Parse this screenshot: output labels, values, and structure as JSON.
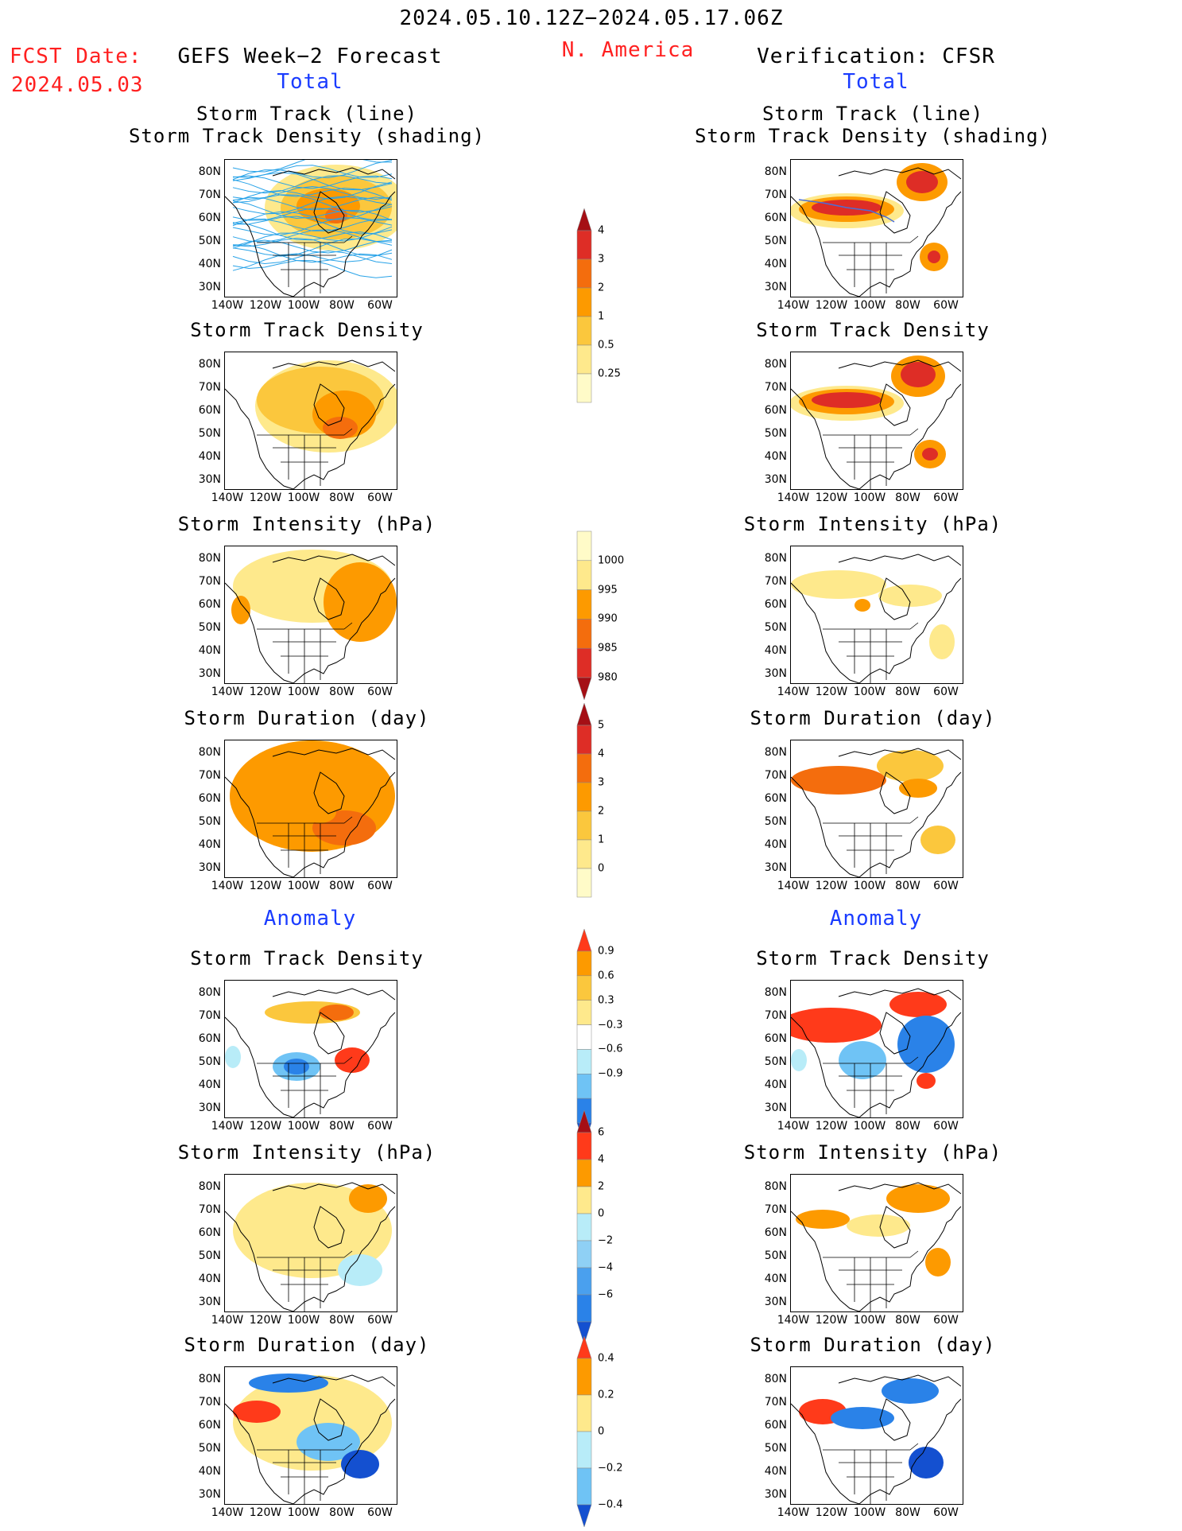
{
  "header": {
    "period": "2024.05.10.12Z−2024.05.17.06Z",
    "region": "N. America",
    "fcst_date_label": "FCST Date:",
    "fcst_date": "2024.05.03",
    "left_title": "GEFS Week−2 Forecast",
    "right_title": "Verification: CFSR",
    "total_label": "Total",
    "anomaly_label": "Anomaly"
  },
  "panel_titles": {
    "track_line": "Storm Track (line)",
    "track_shading": "Storm Track Density (shading)",
    "density": "Storm Track Density",
    "intensity": "Storm Intensity (hPa)",
    "duration": "Storm Duration (day)"
  },
  "axes": {
    "lat_ticks": [
      "80N",
      "70N",
      "60N",
      "50N",
      "40N",
      "30N"
    ],
    "lon_ticks": [
      "140W",
      "120W",
      "100W",
      "80W",
      "60W"
    ]
  },
  "colorbars": {
    "density_total": {
      "labels": [
        "4",
        "3",
        "2",
        "1",
        "0.5",
        "0.25"
      ],
      "colors": [
        "#a50f15",
        "#de2d26",
        "#f46d0d",
        "#fd9a00",
        "#fbc73d",
        "#fee98c",
        "#fffbc8"
      ]
    },
    "intensity_total": {
      "labels": [
        "1000",
        "995",
        "990",
        "985",
        "980"
      ],
      "colors": [
        "#fffbc8",
        "#fee98c",
        "#fd9a00",
        "#f46d0d",
        "#de2d26",
        "#a50f15"
      ]
    },
    "duration_total": {
      "labels": [
        "5",
        "4",
        "3",
        "2",
        "1",
        "0"
      ],
      "colors": [
        "#a50f15",
        "#de2d26",
        "#f46d0d",
        "#fd9a00",
        "#fbc73d",
        "#fee98c",
        "#fffbc8"
      ]
    },
    "density_anom": {
      "labels": [
        "0.9",
        "0.6",
        "0.3",
        "−0.3",
        "−0.6",
        "−0.9"
      ],
      "colors": [
        "#ff3a1a",
        "#fd9a00",
        "#fbc73d",
        "#fee98c",
        "#ffffff",
        "#b8ecf8",
        "#6fc3f5",
        "#2a82e8",
        "#1450d0"
      ]
    },
    "intensity_anom": {
      "labels": [
        "6",
        "4",
        "2",
        "0",
        "−2",
        "−4",
        "−6"
      ],
      "colors": [
        "#a50f15",
        "#ff3a1a",
        "#fd9a00",
        "#fee98c",
        "#b8ecf8",
        "#8fd0f5",
        "#4aa0ee",
        "#2a82e8",
        "#1450d0"
      ]
    },
    "duration_anom": {
      "labels": [
        "0.4",
        "0.2",
        "0",
        "−0.2",
        "−0.4"
      ],
      "colors": [
        "#ff3a1a",
        "#fd9a00",
        "#fee98c",
        "#b8ecf8",
        "#6fc3f5",
        "#1450d0"
      ]
    }
  }
}
